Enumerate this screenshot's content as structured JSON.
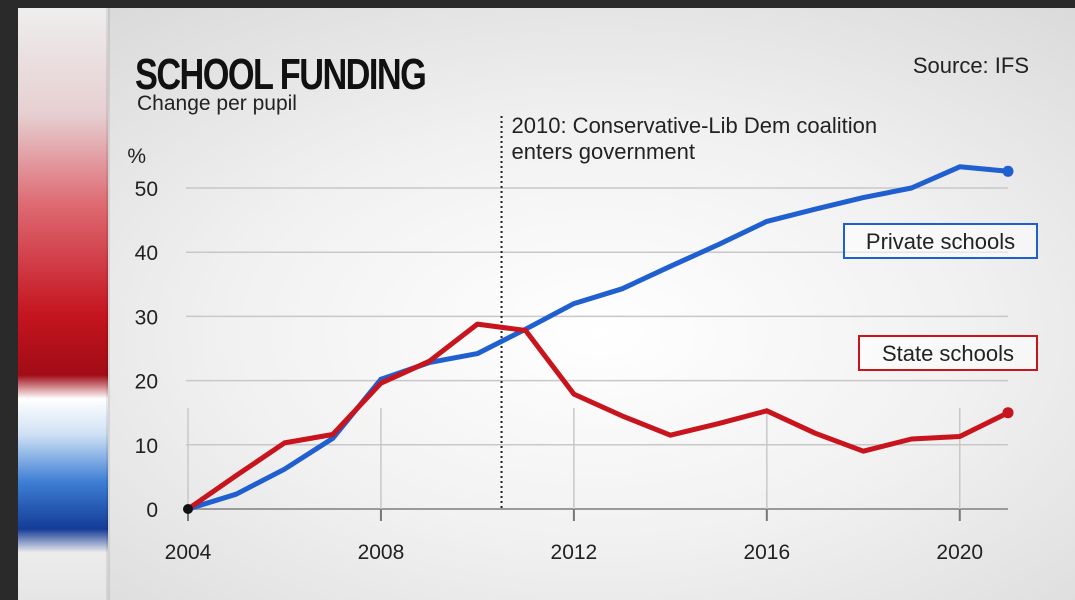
{
  "header": {
    "title": "SCHOOL FUNDING",
    "subtitle": "Change per pupil",
    "source": "Source: IFS"
  },
  "annotation": {
    "year": 2010.5,
    "line1": "2010: Conservative-Lib Dem coalition",
    "line2": "enters government"
  },
  "colors": {
    "private": "#1f5fd0",
    "state": "#c8141c",
    "grid": "#c8c8c8"
  },
  "chart_data": {
    "type": "line",
    "title": "SCHOOL FUNDING",
    "subtitle": "Change per pupil",
    "ylabel": "%",
    "xlabel": "",
    "xlim": [
      2004,
      2021
    ],
    "ylim": [
      0,
      55
    ],
    "x_ticks": [
      2004,
      2008,
      2012,
      2016,
      2020
    ],
    "y_ticks": [
      0,
      10,
      20,
      30,
      40,
      50
    ],
    "x": [
      2004,
      2005,
      2006,
      2007,
      2008,
      2009,
      2010,
      2011,
      2012,
      2013,
      2014,
      2015,
      2016,
      2017,
      2018,
      2019,
      2020,
      2021
    ],
    "series": [
      {
        "name": "Private schools",
        "color": "#1f5fd0",
        "values": [
          0,
          2.3,
          6.2,
          11.0,
          20.2,
          22.8,
          24.2,
          28.0,
          32.0,
          34.3,
          37.8,
          41.2,
          44.8,
          46.7,
          48.5,
          50.0,
          53.3,
          52.6
        ]
      },
      {
        "name": "State schools",
        "color": "#c8141c",
        "values": [
          0,
          5.2,
          10.3,
          11.6,
          19.6,
          23.0,
          28.8,
          27.8,
          17.9,
          14.5,
          11.5,
          13.3,
          15.3,
          11.8,
          9.0,
          10.9,
          11.3,
          15.0
        ]
      }
    ],
    "legend": [
      "Private schools",
      "State schools"
    ],
    "source": "Source: IFS"
  }
}
